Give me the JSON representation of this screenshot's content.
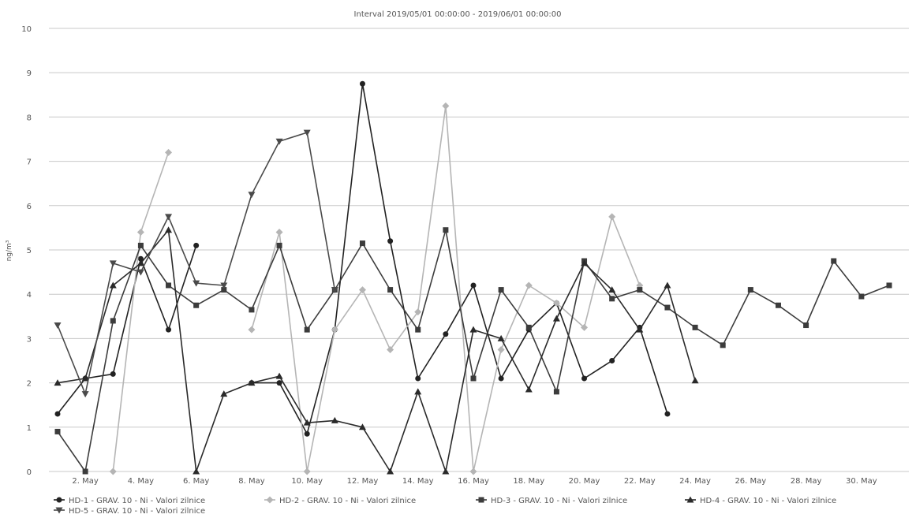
{
  "chart_data": {
    "type": "line",
    "title": "Interval 2019/05/01 00:00:00 - 2019/06/01 00:00:00",
    "ylabel": "ng/m³",
    "xlabel": "",
    "ylim": [
      0,
      10
    ],
    "y_ticks": [
      "0",
      "1",
      "2",
      "3",
      "4",
      "5",
      "6",
      "7",
      "8",
      "9",
      "10"
    ],
    "x_ticks": [
      "2. May",
      "4. May",
      "6. May",
      "8. May",
      "10. May",
      "12. May",
      "14. May",
      "16. May",
      "18. May",
      "20. May",
      "22. May",
      "24. May",
      "26. May",
      "28. May",
      "30. May"
    ],
    "grid": true,
    "legend_position": "bottom",
    "series": [
      {
        "name": "HD-1 - GRAV. 10 - Ni - Valori zilnice",
        "color": "#222222",
        "marker": "circle",
        "points": [
          [
            1,
            1.3
          ],
          [
            2,
            2.1
          ],
          [
            3,
            2.2
          ],
          [
            4,
            4.8
          ],
          [
            5,
            3.2
          ],
          [
            6,
            5.1
          ],
          [
            null,
            null
          ],
          [
            8,
            2.0
          ],
          [
            9,
            2.0
          ],
          [
            10,
            0.85
          ],
          [
            11,
            3.2
          ],
          [
            12,
            8.75
          ],
          [
            13,
            5.2
          ],
          [
            14,
            2.1
          ],
          [
            15,
            3.1
          ],
          [
            16,
            4.2
          ],
          [
            17,
            2.1
          ],
          [
            18,
            3.2
          ],
          [
            19,
            3.8
          ],
          [
            20,
            2.1
          ],
          [
            21,
            2.5
          ],
          [
            22,
            3.25
          ],
          [
            23,
            1.3
          ]
        ]
      },
      {
        "name": "HD-2 - GRAV. 10 - Ni - Valori zilnice",
        "color": "#b5b5b5",
        "marker": "diamond",
        "points": [
          [
            3,
            0.0
          ],
          [
            4,
            5.4
          ],
          [
            5,
            7.2
          ],
          [
            null,
            null
          ],
          [
            8,
            3.2
          ],
          [
            9,
            5.4
          ],
          [
            10,
            0.0
          ],
          [
            11,
            3.2
          ],
          [
            12,
            4.1
          ],
          [
            13,
            2.75
          ],
          [
            14,
            3.6
          ],
          [
            15,
            8.25
          ],
          [
            16,
            0.0
          ],
          [
            17,
            2.75
          ],
          [
            18,
            4.2
          ],
          [
            19,
            3.8
          ],
          [
            20,
            3.25
          ],
          [
            21,
            5.75
          ],
          [
            22,
            4.2
          ]
        ]
      },
      {
        "name": "HD-3 - GRAV. 10 - Ni - Valori zilnice",
        "color": "#3c3c3c",
        "marker": "square",
        "points": [
          [
            1,
            0.9
          ],
          [
            2,
            0.0
          ],
          [
            3,
            3.4
          ],
          [
            4,
            5.1
          ],
          [
            5,
            4.2
          ],
          [
            6,
            3.75
          ],
          [
            7,
            4.1
          ],
          [
            8,
            3.65
          ],
          [
            9,
            5.1
          ],
          [
            10,
            3.2
          ],
          [
            11,
            4.1
          ],
          [
            12,
            5.15
          ],
          [
            13,
            4.1
          ],
          [
            14,
            3.2
          ],
          [
            15,
            5.45
          ],
          [
            16,
            2.1
          ],
          [
            17,
            4.1
          ],
          [
            18,
            3.25
          ],
          [
            19,
            1.8
          ],
          [
            20,
            4.75
          ],
          [
            21,
            3.9
          ],
          [
            22,
            4.1
          ],
          [
            23,
            3.7
          ],
          [
            24,
            3.25
          ],
          [
            25,
            2.85
          ],
          [
            26,
            4.1
          ],
          [
            27,
            3.75
          ],
          [
            28,
            3.3
          ],
          [
            29,
            4.75
          ],
          [
            30,
            3.95
          ],
          [
            31,
            4.2
          ]
        ]
      },
      {
        "name": "HD-4 - GRAV. 10 - Ni - Valori zilnice",
        "color": "#2a2a2a",
        "marker": "triangle",
        "points": [
          [
            1,
            2.0
          ],
          [
            2,
            2.1
          ],
          [
            3,
            4.2
          ],
          [
            4,
            4.7
          ],
          [
            5,
            5.45
          ],
          [
            6,
            0.0
          ],
          [
            7,
            1.75
          ],
          [
            8,
            2.0
          ],
          [
            9,
            2.15
          ],
          [
            10,
            1.1
          ],
          [
            11,
            1.15
          ],
          [
            12,
            1.0
          ],
          [
            13,
            0.0
          ],
          [
            14,
            1.8
          ],
          [
            15,
            0.0
          ],
          [
            16,
            3.2
          ],
          [
            17,
            3.0
          ],
          [
            18,
            1.85
          ],
          [
            19,
            3.45
          ],
          [
            20,
            4.7
          ],
          [
            21,
            4.1
          ],
          [
            22,
            3.2
          ],
          [
            23,
            4.2
          ],
          [
            24,
            2.05
          ]
        ]
      },
      {
        "name": "HD-5 - GRAV. 10 - Ni - Valori zilnice",
        "color": "#4a4a4a",
        "marker": "tri-down",
        "points": [
          [
            1,
            3.3
          ],
          [
            2,
            1.75
          ],
          [
            3,
            4.7
          ],
          [
            4,
            4.5
          ],
          [
            5,
            5.75
          ],
          [
            6,
            4.25
          ],
          [
            7,
            4.2
          ],
          [
            8,
            6.25
          ],
          [
            9,
            7.45
          ],
          [
            10,
            7.65
          ],
          [
            11,
            4.1
          ]
        ]
      }
    ]
  }
}
